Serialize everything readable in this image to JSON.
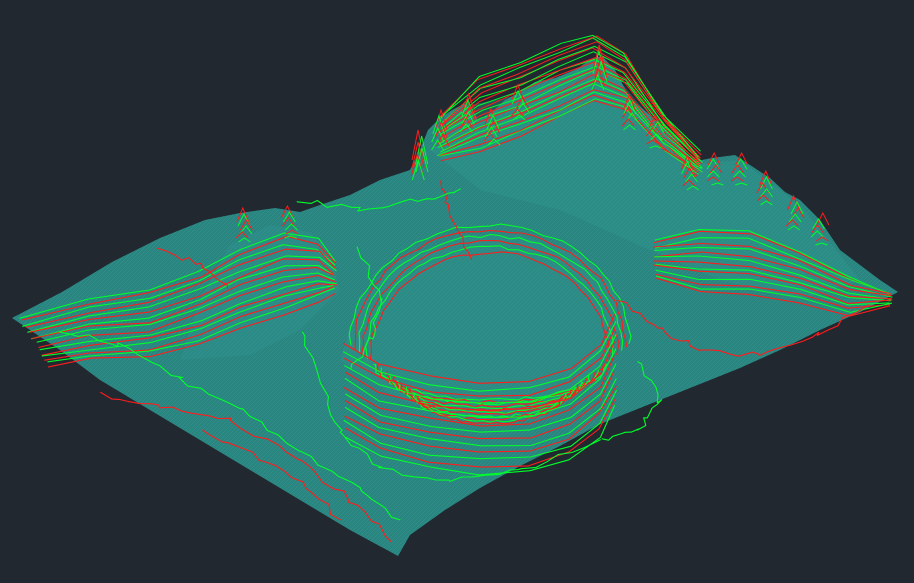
{
  "viewport": {
    "background_color": "#212830"
  },
  "terrain": {
    "surface_color": "#2a8580",
    "surface_edge_color": "#2f9a93",
    "mesh_color": "#3aa39c",
    "contour_colors": {
      "major": "#00ff2a",
      "minor": "#ff1c1c"
    },
    "features": [
      "left-ridge",
      "central-crater",
      "back-peaks",
      "right-ridge"
    ]
  }
}
